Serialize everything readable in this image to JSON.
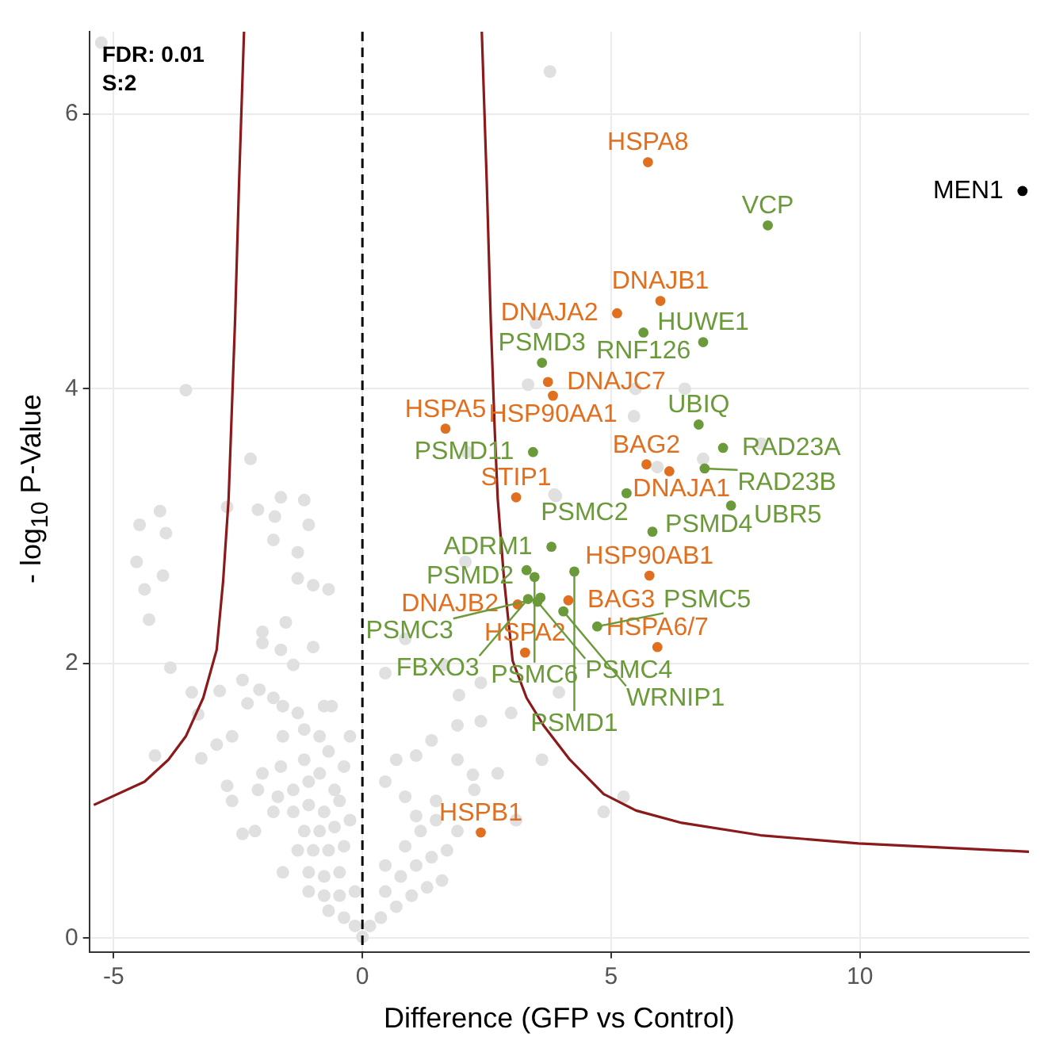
{
  "chart_data": {
    "type": "scatter",
    "xlabel": "Difference (GFP vs Control)",
    "ylabel": "- log$_{10}$ P-Value",
    "xlim": [
      -5.49,
      13.4
    ],
    "ylim": [
      -0.1,
      6.6
    ],
    "xticks": [
      -5,
      0,
      5,
      10
    ],
    "yticks": [
      0,
      2,
      4,
      6
    ],
    "grid": true,
    "legend": false,
    "marker": "circle",
    "annotations": [
      "FDR: 0.01",
      "S:2"
    ],
    "ref_lines": [
      {
        "axis": "x",
        "value": 0,
        "color": "#000000",
        "line_style": "dashed"
      }
    ],
    "series": [
      {
        "color": "#e0e0e0",
        "x": [
          -5.25,
          3.77,
          -3.55,
          -2.25,
          -1.64,
          -1.17,
          -4.07,
          -2.72,
          -4.48,
          -3.95,
          -4.54,
          -4.01,
          -4.38,
          -4.29,
          -3.86,
          -3.43,
          -3.3,
          -2.87,
          -4.17,
          -3.24,
          -2.93,
          -2.62,
          -2.72,
          -2.62,
          -2.41,
          -2.16,
          -2.1,
          -1.76,
          -1.79,
          -1.08,
          -1.3,
          -1.3,
          -0.99,
          -1.54,
          -2.01,
          -2.01,
          -0.99,
          -1.64,
          -1.39,
          -2.41,
          -2.07,
          -2.31,
          -1.79,
          -1.6,
          -1.3,
          -0.77,
          -0.62,
          -1.17,
          -1.6,
          -0.86,
          -0.25,
          -0.68,
          -1.64,
          -2.01,
          -1.17,
          -0.86,
          -0.37,
          -2.1,
          -1.7,
          -1.39,
          -1.08,
          -0.56,
          -1.79,
          -1.39,
          -1.08,
          -0.77,
          -0.46,
          -1.17,
          -0.86,
          -0.56,
          -0.25,
          -1.3,
          -0.99,
          -0.68,
          -0.37,
          -1.6,
          -1.08,
          -0.77,
          -0.46,
          -1.08,
          -0.77,
          -0.46,
          -0.15,
          -0.68,
          -0.37,
          -0.15,
          0.0,
          0.15,
          0.37,
          0.68,
          0.99,
          1.3,
          1.6,
          0.46,
          0.77,
          1.08,
          1.39,
          1.7,
          0.46,
          0.86,
          1.17,
          1.48,
          1.91,
          1.08,
          1.48,
          0.86,
          0.46,
          0.68,
          1.08,
          1.39,
          1.91,
          2.22,
          2.25,
          2.72,
          3.09,
          1.94,
          2.38,
          1.91,
          0.46,
          0.86,
          2.99,
          3.61,
          3.95,
          1.64,
          4.85,
          5.25,
          2.38,
          3.49,
          3.33,
          5.49,
          6.48,
          5.46,
          5.93,
          6.85,
          8.02,
          3.89,
          2.1,
          3.86,
          2.07,
          -0.68
        ],
        "values": [
          6.52,
          6.31,
          3.99,
          3.49,
          3.21,
          3.19,
          3.11,
          3.14,
          3.01,
          2.95,
          2.74,
          2.64,
          2.54,
          2.32,
          1.97,
          1.79,
          1.63,
          1.8,
          1.33,
          1.31,
          1.41,
          1.47,
          1.11,
          1.0,
          0.76,
          0.78,
          3.12,
          3.07,
          2.9,
          3.01,
          2.81,
          2.62,
          2.57,
          2.3,
          2.23,
          2.15,
          2.12,
          2.1,
          1.99,
          1.88,
          1.81,
          1.71,
          1.75,
          1.69,
          1.64,
          1.69,
          1.69,
          1.52,
          1.47,
          1.47,
          1.47,
          1.36,
          1.25,
          1.2,
          1.3,
          1.2,
          1.25,
          1.08,
          1.03,
          1.08,
          1.14,
          1.08,
          0.92,
          0.92,
          0.97,
          0.92,
          1.0,
          0.78,
          0.78,
          0.81,
          0.86,
          0.64,
          0.64,
          0.64,
          0.67,
          0.48,
          0.48,
          0.45,
          0.48,
          0.34,
          0.31,
          0.31,
          0.34,
          0.2,
          0.15,
          0.09,
          0.01,
          0.09,
          0.15,
          0.23,
          0.31,
          0.37,
          0.42,
          0.34,
          0.45,
          0.53,
          0.59,
          0.64,
          0.53,
          0.67,
          0.78,
          0.86,
          0.78,
          0.89,
          1.0,
          1.03,
          1.14,
          1.3,
          1.33,
          1.44,
          1.3,
          1.19,
          1.08,
          1.2,
          0.86,
          1.77,
          1.86,
          1.55,
          1.93,
          2.18,
          1.64,
          1.3,
          1.79,
          1.99,
          0.92,
          1.03,
          1.58,
          4.48,
          4.03,
          4.0,
          4.0,
          3.8,
          3.43,
          3.49,
          3.6,
          3.22,
          3.54,
          3.23,
          2.74,
          2.54
        ]
      },
      {
        "color": "#e07020",
        "x": [
          5.74,
          5.12,
          5.99,
          3.73,
          3.83,
          1.67,
          5.71,
          6.17,
          3.09,
          5.77,
          4.14,
          3.12,
          3.27,
          5.93,
          2.38
        ],
        "values": [
          5.65,
          4.55,
          4.64,
          4.05,
          3.95,
          3.71,
          3.45,
          3.4,
          3.21,
          2.64,
          2.46,
          2.43,
          2.08,
          2.12,
          0.77
        ],
        "value_labels": [
          "HSPA8",
          "DNAJA2",
          "DNAJB1",
          "DNAJC7",
          "HSP90AA1",
          "HSPA5",
          "BAG2",
          "DNAJA1",
          "STIP1",
          "HSP90AB1",
          "BAG3",
          "DNAJB2",
          "HSPA2",
          "HSPA6/7",
          "HSPB1"
        ]
      },
      {
        "color": "#6b9a3a",
        "x": [
          8.15,
          5.65,
          6.85,
          3.61,
          6.76,
          7.25,
          6.88,
          3.43,
          5.31,
          5.83,
          7.41,
          3.8,
          3.3,
          3.46,
          4.26,
          3.33,
          3.52,
          3.58,
          4.04,
          4.72
        ],
        "values": [
          5.19,
          4.41,
          4.34,
          4.19,
          3.74,
          3.57,
          3.42,
          3.54,
          3.24,
          2.96,
          3.15,
          2.85,
          2.68,
          2.63,
          2.67,
          2.47,
          2.45,
          2.48,
          2.38,
          2.27
        ],
        "value_labels": [
          "VCP",
          "RNF126",
          "HUWE1",
          "PSMD3",
          "UBIQ",
          "RAD23A",
          "RAD23B",
          "PSMD11",
          "PSMC2",
          "PSMD4",
          "UBR5",
          "ADRM1",
          "PSMD2",
          "PSMC6",
          "PSMD1",
          "FBXO3",
          "PSMC4",
          "PSMC3",
          "WRNIP1",
          "PSMC5"
        ]
      },
      {
        "color": "#000000",
        "x": [
          13.27
        ],
        "values": [
          5.44
        ],
        "value_labels": [
          "MEN1"
        ]
      },
      {
        "type": "line",
        "color": "#8b1a1a",
        "marker": "none",
        "x": [
          2.4,
          2.5,
          2.58,
          2.66,
          2.72,
          2.85,
          3.02,
          3.3,
          3.64,
          4.17,
          4.85,
          5.5,
          6.42,
          8.0,
          9.97,
          13.4
        ],
        "values": [
          6.6,
          5.5,
          4.5,
          3.7,
          3.2,
          2.6,
          2.02,
          1.75,
          1.55,
          1.3,
          1.05,
          0.93,
          0.84,
          0.75,
          0.69,
          0.63
        ]
      },
      {
        "type": "line",
        "color": "#8b1a1a",
        "marker": "none",
        "x": [
          -2.38,
          -2.48,
          -2.56,
          -2.64,
          -2.69,
          -2.8,
          -2.93,
          -3.2,
          -3.55,
          -3.9,
          -4.38,
          -5.4
        ],
        "values": [
          6.6,
          5.5,
          4.5,
          3.7,
          3.2,
          2.6,
          2.1,
          1.75,
          1.47,
          1.3,
          1.14,
          0.97
        ]
      }
    ]
  }
}
